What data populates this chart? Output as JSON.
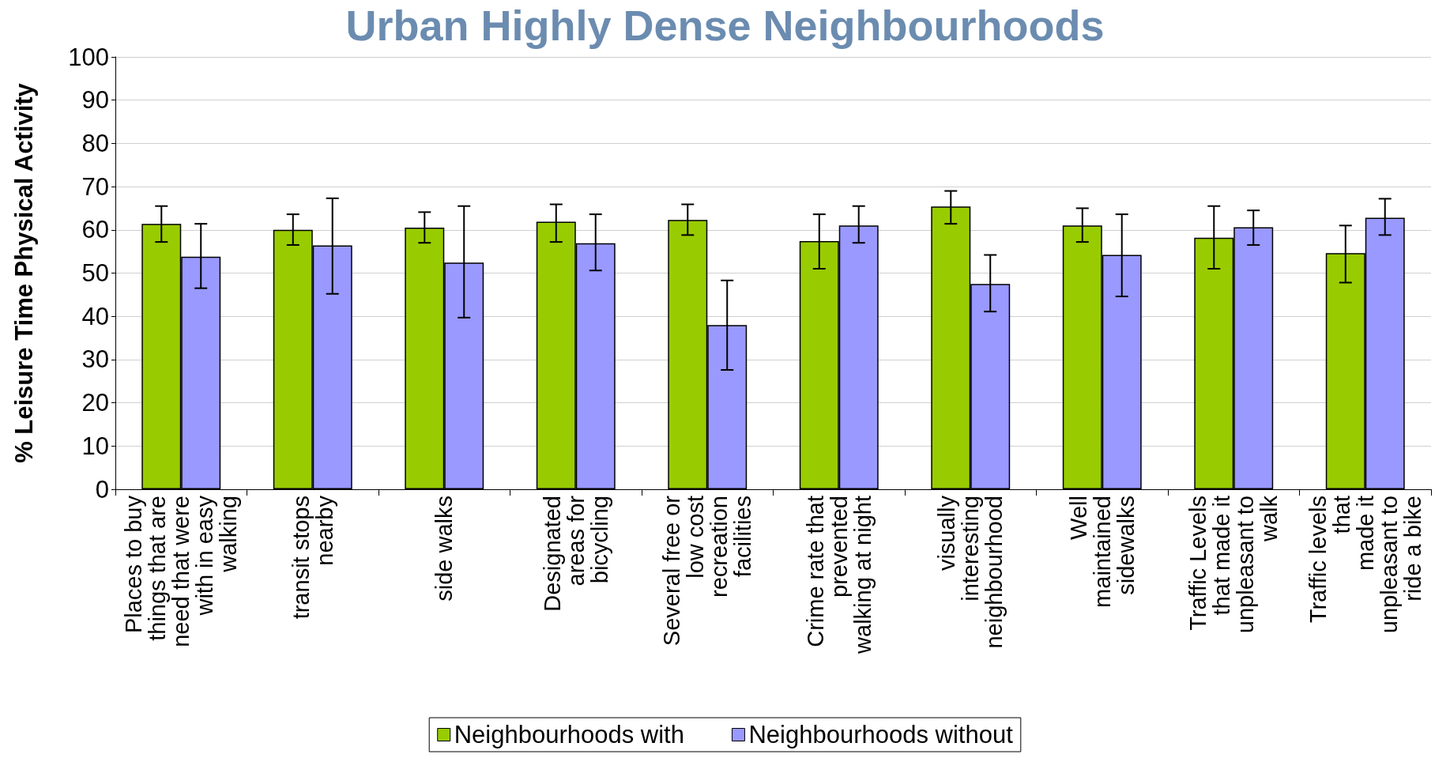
{
  "chart_data": {
    "type": "bar",
    "title": "Urban Highly Dense Neighbourhoods",
    "ylabel": "% Leisure Time Physical Activity",
    "categories": [
      "Places to buy\nthings that are\nneed that were\nwith in easy\nwalking",
      "transit stops\nnearby",
      "side walks",
      "Designated\nareas for\nbicycling",
      "Several free or\nlow cost\nrecreation\nfacilities",
      "Crime rate that\nprevented\nwalking at night",
      "visually\ninteresting\nneighbourhood",
      "Well\nmaintained\nsidewalks",
      "Traffic Levels\nthat made it\nunpleasant to\nwalk",
      "Traffic levels\nthat\nmade it\nunpleasant to\nride a bike"
    ],
    "series": [
      {
        "name": "Neighbourhoods with",
        "color": "#99cc00",
        "values": [
          61.4,
          60,
          60.5,
          61.9,
          62.3,
          57.4,
          65.4,
          61,
          58.2,
          54.6
        ],
        "errors": [
          [
            57.2,
            65.5
          ],
          [
            56.5,
            63.6
          ],
          [
            57,
            64.1
          ],
          [
            57.2,
            65.9
          ],
          [
            58.8,
            65.9
          ],
          [
            51,
            63.6
          ],
          [
            61.4,
            69
          ],
          [
            57.2,
            65
          ],
          [
            51,
            65.5
          ],
          [
            47.8,
            61
          ]
        ]
      },
      {
        "name": "Neighbourhoods without",
        "color": "#9999ff",
        "values": [
          53.8,
          56.4,
          52.4,
          56.9,
          38,
          61,
          47.5,
          54.2,
          60.6,
          62.8
        ],
        "errors": [
          [
            46.5,
            61.4
          ],
          [
            45.2,
            67.3
          ],
          [
            39.7,
            65.5
          ],
          [
            50.6,
            63.6
          ],
          [
            27.6,
            48.3
          ],
          [
            57,
            65.5
          ],
          [
            41.1,
            54.2
          ],
          [
            44.6,
            63.6
          ],
          [
            56.5,
            64.5
          ],
          [
            58.8,
            67.2
          ]
        ]
      }
    ],
    "ylim": [
      0,
      100
    ],
    "yticks": [
      0,
      10,
      20,
      30,
      40,
      50,
      60,
      70,
      80,
      90,
      100
    ],
    "grid": "y",
    "legend": "bottom"
  }
}
